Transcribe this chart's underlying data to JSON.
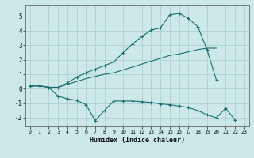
{
  "xlabel": "Humidex (Indice chaleur)",
  "xlim": [
    -0.5,
    23.5
  ],
  "ylim": [
    -2.6,
    5.8
  ],
  "xticks": [
    0,
    1,
    2,
    3,
    4,
    5,
    6,
    7,
    8,
    9,
    10,
    11,
    12,
    13,
    14,
    15,
    16,
    17,
    18,
    19,
    20,
    21,
    22,
    23
  ],
  "yticks": [
    -2,
    -1,
    0,
    1,
    2,
    3,
    4,
    5
  ],
  "bg_color": "#cce8e8",
  "grid_color": "#a8cccc",
  "line_color": "#1a6e6e",
  "line1": {
    "x": [
      0,
      1,
      2,
      3,
      4,
      5,
      6,
      7,
      8,
      9,
      10,
      11,
      12,
      13,
      14,
      15,
      16,
      17,
      18,
      19,
      20,
      21,
      22
    ],
    "y": [
      0.2,
      0.2,
      0.1,
      -0.5,
      -0.7,
      -0.8,
      -1.1,
      -2.2,
      -1.5,
      -0.85,
      -0.85,
      -0.85,
      -0.9,
      -0.95,
      -1.05,
      -1.1,
      -1.2,
      -1.3,
      -1.5,
      -1.8,
      -2.0,
      -1.35,
      -2.15
    ],
    "markers": true
  },
  "line2": {
    "x": [
      0,
      1,
      2,
      3,
      4,
      5,
      6,
      7,
      8,
      9,
      10,
      11,
      12,
      13,
      14,
      15,
      16,
      17,
      18,
      19,
      20
    ],
    "y": [
      0.2,
      0.2,
      0.1,
      0.1,
      0.3,
      0.5,
      0.7,
      0.85,
      1.0,
      1.1,
      1.3,
      1.5,
      1.7,
      1.9,
      2.1,
      2.3,
      2.4,
      2.55,
      2.7,
      2.8,
      2.8
    ],
    "markers": false
  },
  "line3": {
    "x": [
      0,
      1,
      2,
      3,
      4,
      5,
      6,
      7,
      8,
      9,
      10,
      11,
      12,
      13,
      14,
      15,
      16,
      17,
      18,
      19,
      20
    ],
    "y": [
      0.2,
      0.2,
      0.1,
      0.1,
      0.4,
      0.8,
      1.1,
      1.35,
      1.6,
      1.85,
      2.5,
      3.1,
      3.6,
      4.05,
      4.2,
      5.1,
      5.2,
      4.85,
      4.3,
      2.7,
      0.6
    ],
    "markers": true
  }
}
